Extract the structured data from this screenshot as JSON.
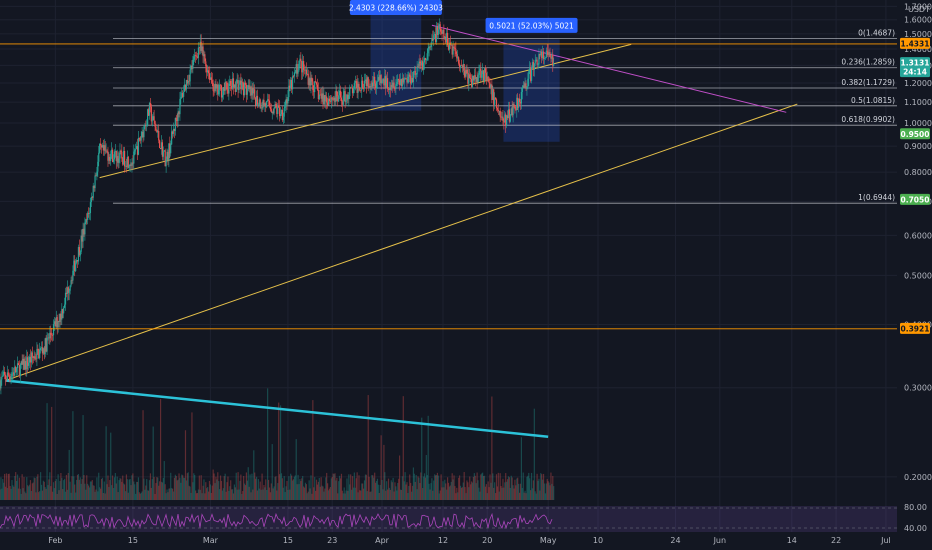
{
  "chart_data": {
    "type": "candlestick",
    "quote_currency": "USDT",
    "y_scale": "log",
    "ylim": [
      0.18,
      1.75
    ],
    "x_start": "2021-01-22",
    "x_end": "2021-07-03",
    "y_ticks": [
      "1.7000",
      "1.6000",
      "1.5000",
      "1.4000",
      "1.3000",
      "1.2000",
      "1.1000",
      "1.0000",
      "0.9000",
      "0.8000",
      "0.7000",
      "0.6000",
      "0.5000",
      "0.4000",
      "0.3000",
      "0.2000"
    ],
    "x_ticks": [
      {
        "label": "Feb",
        "date": "2021-02-01"
      },
      {
        "label": "15",
        "date": "2021-02-15"
      },
      {
        "label": "Mar",
        "date": "2021-03-01"
      },
      {
        "label": "15",
        "date": "2021-03-15"
      },
      {
        "label": "23",
        "date": "2021-03-23"
      },
      {
        "label": "Apr",
        "date": "2021-04-01"
      },
      {
        "label": "12",
        "date": "2021-04-12"
      },
      {
        "label": "20",
        "date": "2021-04-20"
      },
      {
        "label": "May",
        "date": "2021-05-01"
      },
      {
        "label": "10",
        "date": "2021-05-10"
      },
      {
        "label": "24",
        "date": "2021-05-24"
      },
      {
        "label": "Jun",
        "date": "2021-06-01"
      },
      {
        "label": "14",
        "date": "2021-06-14"
      },
      {
        "label": "22",
        "date": "2021-06-22"
      },
      {
        "label": "Jul",
        "date": "2021-07-01"
      }
    ],
    "price_path": [
      [
        "2021-01-22",
        0.31
      ],
      [
        "2021-01-26",
        0.33
      ],
      [
        "2021-01-30",
        0.36
      ],
      [
        "2021-02-02",
        0.42
      ],
      [
        "2021-02-05",
        0.55
      ],
      [
        "2021-02-07",
        0.66
      ],
      [
        "2021-02-09",
        0.88
      ],
      [
        "2021-02-12",
        0.86
      ],
      [
        "2021-02-15",
        0.84
      ],
      [
        "2021-02-18",
        1.06
      ],
      [
        "2021-02-21",
        0.84
      ],
      [
        "2021-02-24",
        1.15
      ],
      [
        "2021-02-27",
        1.42
      ],
      [
        "2021-03-02",
        1.15
      ],
      [
        "2021-03-06",
        1.2
      ],
      [
        "2021-03-10",
        1.1
      ],
      [
        "2021-03-14",
        1.05
      ],
      [
        "2021-03-17",
        1.32
      ],
      [
        "2021-03-21",
        1.12
      ],
      [
        "2021-03-25",
        1.12
      ],
      [
        "2021-03-29",
        1.22
      ],
      [
        "2021-04-02",
        1.2
      ],
      [
        "2021-04-06",
        1.23
      ],
      [
        "2021-04-09",
        1.34
      ],
      [
        "2021-04-11",
        1.53
      ],
      [
        "2021-04-14",
        1.4
      ],
      [
        "2021-04-17",
        1.2
      ],
      [
        "2021-04-19",
        1.28
      ],
      [
        "2021-04-21",
        1.13
      ],
      [
        "2021-04-23",
        1.0
      ],
      [
        "2021-04-26",
        1.13
      ],
      [
        "2021-04-29",
        1.34
      ],
      [
        "2021-05-01",
        1.36
      ],
      [
        "2021-05-02",
        1.31
      ]
    ],
    "horizontal_levels": [
      {
        "label": "0(1.4687)",
        "price": 1.4687,
        "color": "#d1d4dc"
      },
      {
        "label": "0.236(1.2859)",
        "price": 1.2859,
        "color": "#d1d4dc"
      },
      {
        "label": "0.382(1.1729)",
        "price": 1.1729,
        "color": "#d1d4dc"
      },
      {
        "label": "0.5(1.0815)",
        "price": 1.0815,
        "color": "#d1d4dc"
      },
      {
        "label": "0.618(0.9902)",
        "price": 0.9902,
        "color": "#d1d4dc"
      },
      {
        "label": "1(0.6944)",
        "price": 0.6944,
        "color": "#d1d4dc"
      }
    ],
    "price_tags": [
      {
        "label": "1.4331",
        "price": 1.4331,
        "color": "#ff9800"
      },
      {
        "label": "1.3131",
        "price": 1.3131,
        "color": "#26a69a",
        "sub": "24:14"
      },
      {
        "label": "0.9500",
        "price": 0.95,
        "color": "#4caf50"
      },
      {
        "label": "0.7050",
        "price": 0.705,
        "color": "#4caf50"
      },
      {
        "label": "0.3921",
        "price": 0.3921,
        "color": "#ff9800"
      }
    ],
    "measure_boxes": [
      {
        "label": "2.4303 (228.66%) 24303",
        "from": "2021-03-30",
        "to": "2021-04-08",
        "low": 1.06,
        "high": 1.75
      },
      {
        "label": "0.5021 (52.03%) 5021",
        "from": "2021-04-23",
        "to": "2021-05-03",
        "low": 0.92,
        "high": 1.46
      }
    ],
    "trendlines": [
      {
        "color": "#e5c04a",
        "points": [
          [
            "2021-02-09",
            0.78
          ],
          [
            "2021-05-16",
            1.43
          ]
        ]
      },
      {
        "color": "#e5c04a",
        "points": [
          [
            "2021-01-23",
            0.31
          ],
          [
            "2021-06-15",
            1.09
          ]
        ]
      },
      {
        "color": "#c04fc8",
        "points": [
          [
            "2021-04-10",
            1.56
          ],
          [
            "2021-06-13",
            1.05
          ]
        ]
      },
      {
        "color": "#2cc2d8",
        "points": [
          [
            "2021-01-23",
            0.31
          ],
          [
            "2021-05-01",
            0.24
          ]
        ]
      }
    ]
  },
  "rsi_panel": {
    "levels": [
      "80.00",
      "40.00"
    ]
  }
}
